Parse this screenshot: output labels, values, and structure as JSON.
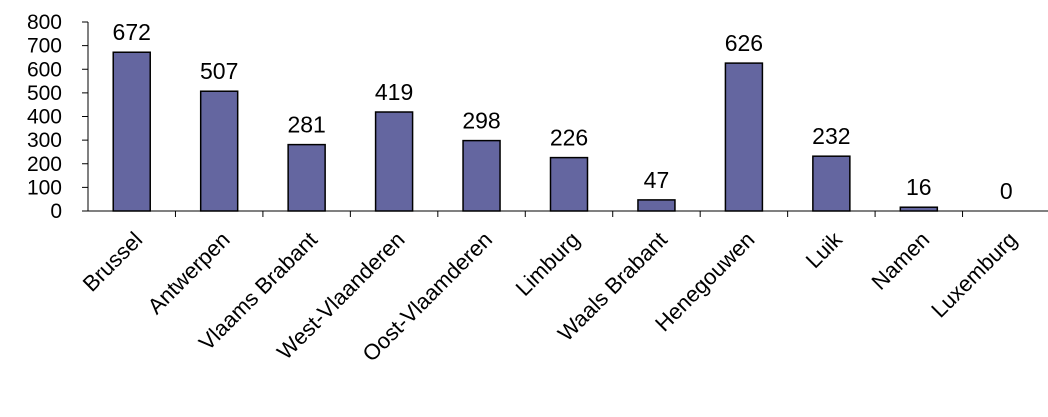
{
  "chart_data": {
    "type": "bar",
    "title": "",
    "xlabel": "",
    "ylabel": "",
    "categories": [
      "Brussel",
      "Antwerpen",
      "Vlaams Brabant",
      "West-Vlaanderen",
      "Oost-Vlaamderen",
      "Limburg",
      "Waals Brabant",
      "Henegouwen",
      "Luik",
      "Namen",
      "Luxemburg"
    ],
    "values": [
      672,
      507,
      281,
      419,
      298,
      226,
      47,
      626,
      232,
      16,
      0
    ],
    "ylim": [
      0,
      800
    ],
    "yticks": [
      0,
      100,
      200,
      300,
      400,
      500,
      600,
      700,
      800
    ],
    "grid": false,
    "legend": "none",
    "data_labels": true,
    "colors": {
      "bar_fill": "#6466a0",
      "bar_stroke": "#000000",
      "axis": "#000000",
      "text": "#000000"
    }
  }
}
